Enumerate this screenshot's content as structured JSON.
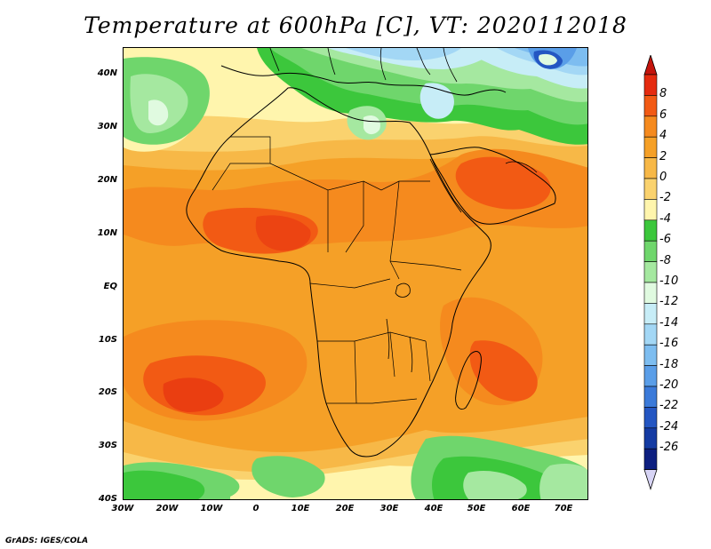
{
  "title": "Temperature at 600hPa [C], VT: 2020112018",
  "credit": "GrADS: IGES/COLA",
  "lat_labels": [
    "40N",
    "30N",
    "20N",
    "10N",
    "EQ",
    "10S",
    "20S",
    "30S",
    "40S"
  ],
  "lon_labels": [
    "30W",
    "20W",
    "10W",
    "0",
    "10E",
    "20E",
    "30E",
    "40E",
    "50E",
    "60E",
    "70E"
  ],
  "colorbar": {
    "labels": [
      "8",
      "6",
      "4",
      "2",
      "0",
      "-2",
      "-4",
      "-6",
      "-8",
      "-10",
      "-12",
      "-14",
      "-16",
      "-18",
      "-20",
      "-22",
      "-24",
      "-26"
    ],
    "colors": [
      "#e52b0f",
      "#f25a14",
      "#f58a1e",
      "#f5a027",
      "#f7b847",
      "#fad26e",
      "#fff5ad",
      "#3cc73c",
      "#6fd66c",
      "#a5e8a0",
      "#e0fae0",
      "#c7edf7",
      "#a3d7f5",
      "#7dbdf0",
      "#5a9ee8",
      "#3b7ad9",
      "#2456c2",
      "#143ba3",
      "#0d1f80"
    ],
    "top_cap_color": "#c4140c",
    "bottom_cap_color": "#d7d4f5"
  }
}
